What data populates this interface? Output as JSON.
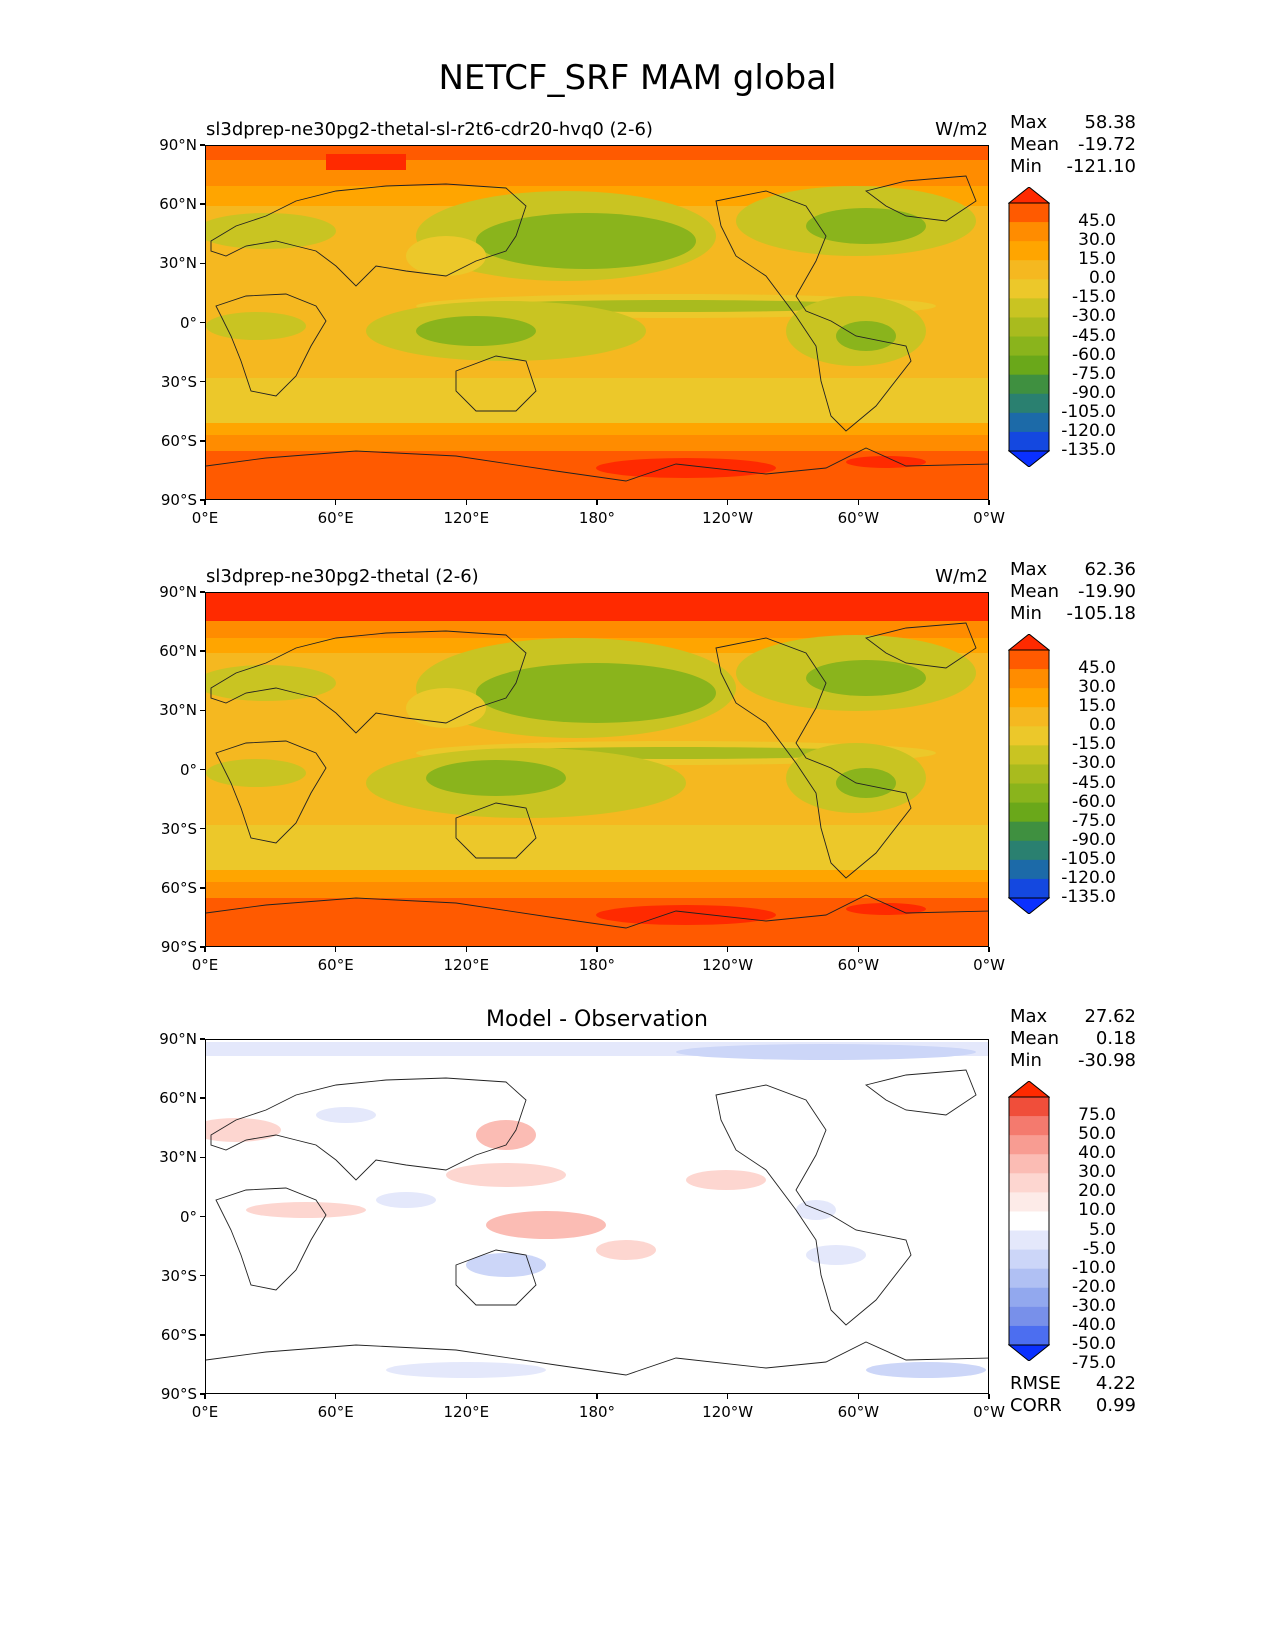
{
  "suptitle": "NETCF_SRF MAM global",
  "xticks": [
    "0°E",
    "60°E",
    "120°E",
    "180°",
    "120°W",
    "60°W",
    "0°W"
  ],
  "yticks": [
    "90°N",
    "60°N",
    "30°N",
    "0°",
    "30°S",
    "60°S",
    "90°S"
  ],
  "panels": [
    {
      "title": "sl3dprep-ne30pg2-thetal-sl-r2t6-cdr20-hvq0 (2-6)",
      "units": "W/m2",
      "stats": {
        "max_label": "Max",
        "max": "58.38",
        "mean_label": "Mean",
        "mean": "-19.72",
        "min_label": "Min",
        "min": "-121.10"
      },
      "colorbar_labels": [
        "45.0",
        "30.0",
        "15.0",
        "0.0",
        "-15.0",
        "-30.0",
        "-45.0",
        "-60.0",
        "-75.0",
        "-90.0",
        "-105.0",
        "-120.0",
        "-135.0"
      ]
    },
    {
      "title": "sl3dprep-ne30pg2-thetal (2-6)",
      "units": "W/m2",
      "stats": {
        "max_label": "Max",
        "max": "62.36",
        "mean_label": "Mean",
        "mean": "-19.90",
        "min_label": "Min",
        "min": "-105.18"
      },
      "colorbar_labels": [
        "45.0",
        "30.0",
        "15.0",
        "0.0",
        "-15.0",
        "-30.0",
        "-45.0",
        "-60.0",
        "-75.0",
        "-90.0",
        "-105.0",
        "-120.0",
        "-135.0"
      ]
    },
    {
      "title": "Model - Observation",
      "stats": {
        "max_label": "Max",
        "max": "27.62",
        "mean_label": "Mean",
        "mean": "0.18",
        "min_label": "Min",
        "min": "-30.98"
      },
      "colorbar_labels": [
        "75.0",
        "50.0",
        "40.0",
        "30.0",
        "20.0",
        "10.0",
        "5.0",
        "-5.0",
        "-10.0",
        "-20.0",
        "-30.0",
        "-40.0",
        "-50.0",
        "-75.0"
      ],
      "rmse_label": "RMSE",
      "rmse": "4.22",
      "corr_label": "CORR",
      "corr": "0.99"
    }
  ],
  "colors": {
    "field_scale": [
      "#ff2a00",
      "#ff5a00",
      "#ff8c00",
      "#ffa500",
      "#f5b820",
      "#ecc82a",
      "#c9c422",
      "#a9bb1e",
      "#8ab41c",
      "#6aa81a",
      "#3f9040",
      "#2a8070",
      "#1c6aa8",
      "#1448e0",
      "#0a30ff"
    ],
    "diff_scale": [
      "#ff2a00",
      "#f04e3a",
      "#f47a6e",
      "#f89c92",
      "#fbbcb4",
      "#fdd6d0",
      "#fdebe8",
      "#ffffff",
      "#e4e8fb",
      "#ccd6f8",
      "#b0c0f3",
      "#92a8ee",
      "#7890ea",
      "#4c6ef0",
      "#0a30ff"
    ]
  }
}
